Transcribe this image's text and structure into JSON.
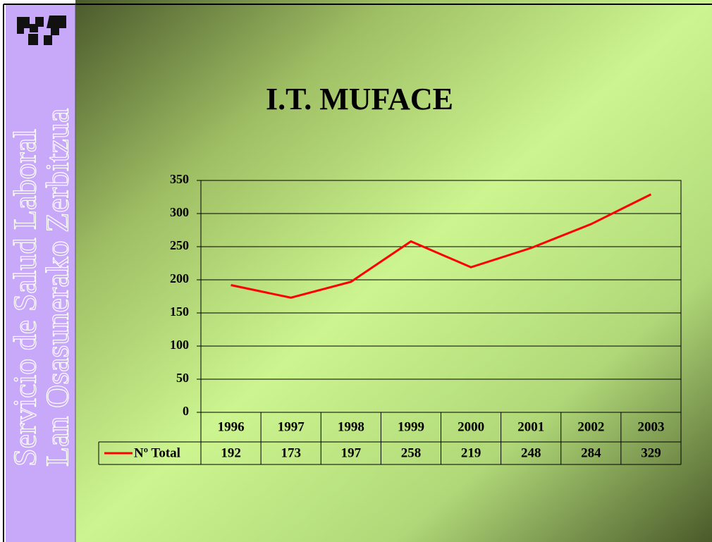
{
  "sidebar": [
    "Servicio de Salud Laboral",
    "Lan Osasunerako Zerbitzua"
  ],
  "chart_data": {
    "type": "line",
    "title": "I.T. MUFACE",
    "categories": [
      "1996",
      "1997",
      "1998",
      "1999",
      "2000",
      "2001",
      "2002",
      "2003"
    ],
    "series": [
      {
        "name": "Nº Total",
        "color": "#ff0000",
        "values": [
          192,
          173,
          197,
          258,
          219,
          248,
          284,
          329
        ]
      }
    ],
    "ylim": [
      0,
      350
    ],
    "yticks": [
      0,
      50,
      100,
      150,
      200,
      250,
      300,
      350
    ],
    "grid": true
  }
}
